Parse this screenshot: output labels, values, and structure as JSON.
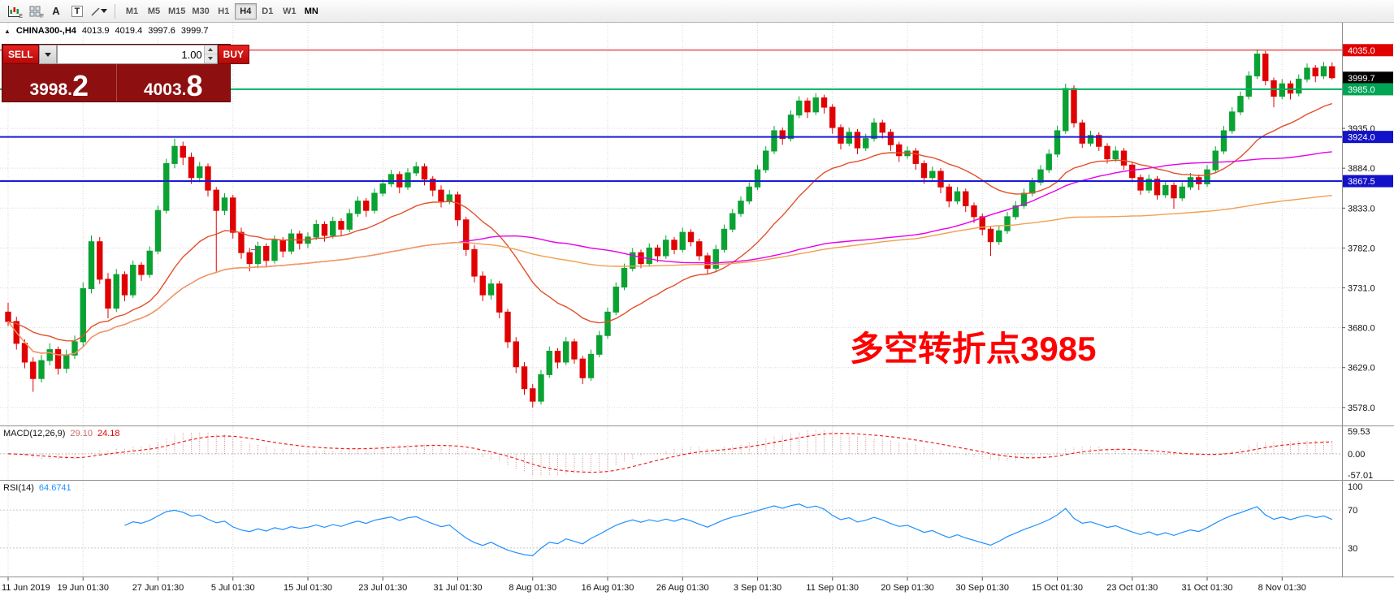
{
  "toolbar": {
    "icon_letters": [
      "E",
      "F",
      "A",
      "T"
    ],
    "timeframes": [
      {
        "label": "M1"
      },
      {
        "label": "M5"
      },
      {
        "label": "M15"
      },
      {
        "label": "M30"
      },
      {
        "label": "H1"
      },
      {
        "label": "H4",
        "selected": true
      },
      {
        "label": "D1"
      },
      {
        "label": "W1"
      },
      {
        "label": "MN",
        "emph": true
      }
    ]
  },
  "symbol_line": {
    "expander": "▲",
    "symbol": "CHINA300-,H4",
    "open": "4013.9",
    "high": "4019.4",
    "low": "3997.6",
    "close": "3999.7"
  },
  "trade_panel": {
    "sell_label": "SELL",
    "buy_label": "BUY",
    "volume": "1.00",
    "sell_main": "3998",
    "sell_pip": "2",
    "buy_main": "4003",
    "buy_pip": "8"
  },
  "annotation": {
    "text": "多空转折点3985",
    "color": "#ff0000"
  },
  "indicators": {
    "macd": {
      "label": "MACD(12,26,9)",
      "value_main": "29.10",
      "value_signal": "24.18",
      "axis": [
        "59.53",
        "0.00",
        "-57.01"
      ]
    },
    "rsi": {
      "label": "RSI(14)",
      "value": "64.6741",
      "axis": [
        "100",
        "70",
        "30"
      ],
      "levels": [
        70,
        30
      ]
    }
  },
  "price_axis": {
    "ticks": [
      "3935.0",
      "3884.0",
      "3833.0",
      "3782.0",
      "3731.0",
      "3680.0",
      "3629.0",
      "3578.0"
    ],
    "badges": [
      {
        "text": "4035.0",
        "price": 4035.0,
        "bg": "#e00000",
        "fg": "#ffffff"
      },
      {
        "text": "3999.7",
        "price": 3999.7,
        "bg": "#000000",
        "fg": "#ffffff"
      },
      {
        "text": "3985.0",
        "price": 3985.0,
        "bg": "#00a455",
        "fg": "#ffffff"
      },
      {
        "text": "3924.0",
        "price": 3924.0,
        "bg": "#1212c8",
        "fg": "#ffffff"
      },
      {
        "text": "3867.5",
        "price": 3867.5,
        "bg": "#1212c8",
        "fg": "#ffffff"
      }
    ]
  },
  "hlines": [
    {
      "price": 4035.0,
      "color": "#e00000",
      "width": 1
    },
    {
      "price": 3985.0,
      "color": "#00b25f",
      "width": 2
    },
    {
      "price": 3924.0,
      "color": "#1a1ad8",
      "width": 2
    },
    {
      "price": 3867.5,
      "color": "#1a1ad8",
      "width": 2
    }
  ],
  "time_axis": {
    "labels": [
      "11 Jun 2019",
      "19 Jun 01:30",
      "27 Jun 01:30",
      "5 Jul 01:30",
      "15 Jul 01:30",
      "23 Jul 01:30",
      "31 Jul 01:30",
      "8 Aug 01:30",
      "16 Aug 01:30",
      "26 Aug 01:30",
      "3 Sep 01:30",
      "11 Sep 01:30",
      "20 Sep 01:30",
      "30 Sep 01:30",
      "15 Oct 01:30",
      "23 Oct 01:30",
      "31 Oct 01:30",
      "8 Nov 01:30"
    ],
    "indices": [
      0,
      9,
      18,
      27,
      36,
      45,
      54,
      63,
      72,
      81,
      90,
      99,
      108,
      117,
      126,
      135,
      144,
      153
    ]
  },
  "chart_data": {
    "type": "candlestick",
    "symbol": "CHINA300-",
    "timeframe": "H4",
    "title": "CHINA300-,H4",
    "last_ohlc": {
      "open": 4013.9,
      "high": 4019.4,
      "low": 3997.6,
      "close": 3999.7
    },
    "y_view": [
      3556,
      4068
    ],
    "colors": {
      "up": "#0aa233",
      "down": "#e00202"
    },
    "moving_averages": [
      {
        "name": "fast",
        "type": "ema",
        "period": 20,
        "color": "#e2502a"
      },
      {
        "name": "medium",
        "type": "sma",
        "period": 55,
        "color": "#e800e8"
      },
      {
        "name": "slow",
        "type": "sma",
        "period": 110,
        "color": "#f0a050"
      }
    ],
    "ohlc": [
      [
        3700,
        3712,
        3682,
        3688
      ],
      [
        3688,
        3694,
        3652,
        3660
      ],
      [
        3660,
        3665,
        3628,
        3636
      ],
      [
        3636,
        3642,
        3598,
        3615
      ],
      [
        3615,
        3645,
        3610,
        3638
      ],
      [
        3638,
        3660,
        3632,
        3652
      ],
      [
        3652,
        3656,
        3620,
        3628
      ],
      [
        3628,
        3652,
        3622,
        3645
      ],
      [
        3645,
        3670,
        3640,
        3662
      ],
      [
        3662,
        3738,
        3656,
        3730
      ],
      [
        3730,
        3798,
        3724,
        3790
      ],
      [
        3790,
        3796,
        3736,
        3742
      ],
      [
        3742,
        3750,
        3692,
        3705
      ],
      [
        3705,
        3755,
        3700,
        3748
      ],
      [
        3748,
        3752,
        3714,
        3722
      ],
      [
        3722,
        3766,
        3718,
        3760
      ],
      [
        3760,
        3764,
        3740,
        3748
      ],
      [
        3748,
        3784,
        3744,
        3778
      ],
      [
        3778,
        3836,
        3774,
        3830
      ],
      [
        3830,
        3896,
        3826,
        3890
      ],
      [
        3890,
        3922,
        3884,
        3912
      ],
      [
        3912,
        3918,
        3888,
        3898
      ],
      [
        3898,
        3904,
        3864,
        3872
      ],
      [
        3872,
        3892,
        3866,
        3886
      ],
      [
        3886,
        3890,
        3848,
        3856
      ],
      [
        3856,
        3860,
        3752,
        3830
      ],
      [
        3830,
        3852,
        3824,
        3846
      ],
      [
        3846,
        3850,
        3794,
        3802
      ],
      [
        3802,
        3808,
        3768,
        3776
      ],
      [
        3776,
        3782,
        3752,
        3762
      ],
      [
        3762,
        3790,
        3756,
        3784
      ],
      [
        3784,
        3788,
        3758,
        3766
      ],
      [
        3766,
        3798,
        3762,
        3792
      ],
      [
        3792,
        3796,
        3770,
        3778
      ],
      [
        3778,
        3806,
        3774,
        3800
      ],
      [
        3800,
        3804,
        3780,
        3788
      ],
      [
        3788,
        3802,
        3782,
        3796
      ],
      [
        3796,
        3818,
        3792,
        3812
      ],
      [
        3812,
        3816,
        3790,
        3798
      ],
      [
        3798,
        3822,
        3794,
        3816
      ],
      [
        3816,
        3820,
        3798,
        3806
      ],
      [
        3806,
        3832,
        3802,
        3826
      ],
      [
        3826,
        3848,
        3822,
        3842
      ],
      [
        3842,
        3846,
        3822,
        3830
      ],
      [
        3830,
        3858,
        3826,
        3852
      ],
      [
        3852,
        3870,
        3848,
        3864
      ],
      [
        3864,
        3882,
        3860,
        3876
      ],
      [
        3876,
        3880,
        3852,
        3860
      ],
      [
        3860,
        3884,
        3856,
        3878
      ],
      [
        3878,
        3892,
        3874,
        3886
      ],
      [
        3886,
        3890,
        3862,
        3870
      ],
      [
        3870,
        3874,
        3848,
        3856
      ],
      [
        3856,
        3862,
        3834,
        3842
      ],
      [
        3842,
        3856,
        3838,
        3850
      ],
      [
        3850,
        3854,
        3810,
        3818
      ],
      [
        3818,
        3822,
        3772,
        3780
      ],
      [
        3780,
        3786,
        3738,
        3746
      ],
      [
        3746,
        3752,
        3714,
        3722
      ],
      [
        3722,
        3742,
        3716,
        3736
      ],
      [
        3736,
        3740,
        3692,
        3700
      ],
      [
        3700,
        3704,
        3654,
        3662
      ],
      [
        3662,
        3668,
        3622,
        3630
      ],
      [
        3630,
        3636,
        3594,
        3602
      ],
      [
        3602,
        3608,
        3578,
        3586
      ],
      [
        3586,
        3626,
        3582,
        3620
      ],
      [
        3620,
        3656,
        3616,
        3650
      ],
      [
        3650,
        3654,
        3628,
        3636
      ],
      [
        3636,
        3668,
        3632,
        3662
      ],
      [
        3662,
        3666,
        3634,
        3640
      ],
      [
        3640,
        3644,
        3608,
        3616
      ],
      [
        3616,
        3652,
        3612,
        3646
      ],
      [
        3646,
        3676,
        3642,
        3670
      ],
      [
        3670,
        3706,
        3666,
        3700
      ],
      [
        3700,
        3738,
        3696,
        3732
      ],
      [
        3732,
        3762,
        3728,
        3756
      ],
      [
        3756,
        3782,
        3752,
        3776
      ],
      [
        3776,
        3780,
        3756,
        3762
      ],
      [
        3762,
        3788,
        3758,
        3782
      ],
      [
        3782,
        3786,
        3764,
        3772
      ],
      [
        3772,
        3798,
        3768,
        3792
      ],
      [
        3792,
        3796,
        3774,
        3780
      ],
      [
        3780,
        3808,
        3776,
        3802
      ],
      [
        3802,
        3806,
        3784,
        3790
      ],
      [
        3790,
        3794,
        3766,
        3772
      ],
      [
        3772,
        3776,
        3748,
        3756
      ],
      [
        3756,
        3786,
        3752,
        3780
      ],
      [
        3780,
        3812,
        3776,
        3806
      ],
      [
        3806,
        3832,
        3802,
        3826
      ],
      [
        3826,
        3848,
        3822,
        3842
      ],
      [
        3842,
        3866,
        3838,
        3860
      ],
      [
        3860,
        3888,
        3856,
        3882
      ],
      [
        3882,
        3912,
        3878,
        3906
      ],
      [
        3906,
        3938,
        3902,
        3932
      ],
      [
        3932,
        3936,
        3914,
        3922
      ],
      [
        3922,
        3958,
        3918,
        3952
      ],
      [
        3952,
        3976,
        3948,
        3970
      ],
      [
        3970,
        3974,
        3948,
        3956
      ],
      [
        3956,
        3980,
        3952,
        3974
      ],
      [
        3974,
        3978,
        3954,
        3962
      ],
      [
        3962,
        3966,
        3928,
        3936
      ],
      [
        3936,
        3940,
        3908,
        3916
      ],
      [
        3916,
        3936,
        3912,
        3930
      ],
      [
        3930,
        3934,
        3902,
        3910
      ],
      [
        3910,
        3928,
        3906,
        3922
      ],
      [
        3922,
        3948,
        3918,
        3942
      ],
      [
        3942,
        3946,
        3922,
        3930
      ],
      [
        3930,
        3934,
        3906,
        3914
      ],
      [
        3914,
        3918,
        3892,
        3900
      ],
      [
        3900,
        3912,
        3896,
        3906
      ],
      [
        3906,
        3910,
        3882,
        3890
      ],
      [
        3890,
        3894,
        3864,
        3872
      ],
      [
        3872,
        3886,
        3868,
        3880
      ],
      [
        3880,
        3884,
        3852,
        3860
      ],
      [
        3860,
        3864,
        3834,
        3842
      ],
      [
        3842,
        3860,
        3838,
        3854
      ],
      [
        3854,
        3858,
        3828,
        3836
      ],
      [
        3836,
        3840,
        3814,
        3822
      ],
      [
        3822,
        3826,
        3798,
        3806
      ],
      [
        3806,
        3810,
        3772,
        3790
      ],
      [
        3790,
        3810,
        3786,
        3804
      ],
      [
        3804,
        3828,
        3800,
        3822
      ],
      [
        3822,
        3842,
        3818,
        3836
      ],
      [
        3836,
        3858,
        3832,
        3852
      ],
      [
        3852,
        3872,
        3848,
        3866
      ],
      [
        3866,
        3888,
        3862,
        3882
      ],
      [
        3882,
        3908,
        3878,
        3902
      ],
      [
        3902,
        3938,
        3898,
        3932
      ],
      [
        3932,
        3992,
        3928,
        3986
      ],
      [
        3986,
        3990,
        3936,
        3942
      ],
      [
        3942,
        3946,
        3910,
        3916
      ],
      [
        3916,
        3932,
        3912,
        3926
      ],
      [
        3926,
        3930,
        3906,
        3912
      ],
      [
        3912,
        3916,
        3890,
        3896
      ],
      [
        3896,
        3912,
        3892,
        3906
      ],
      [
        3906,
        3910,
        3882,
        3888
      ],
      [
        3888,
        3892,
        3866,
        3872
      ],
      [
        3872,
        3876,
        3850,
        3856
      ],
      [
        3856,
        3876,
        3852,
        3870
      ],
      [
        3870,
        3874,
        3844,
        3850
      ],
      [
        3850,
        3868,
        3846,
        3862
      ],
      [
        3862,
        3866,
        3832,
        3846
      ],
      [
        3846,
        3866,
        3842,
        3860
      ],
      [
        3860,
        3878,
        3856,
        3872
      ],
      [
        3872,
        3876,
        3856,
        3864
      ],
      [
        3864,
        3888,
        3860,
        3882
      ],
      [
        3882,
        3912,
        3878,
        3906
      ],
      [
        3906,
        3938,
        3902,
        3932
      ],
      [
        3932,
        3962,
        3928,
        3956
      ],
      [
        3956,
        3982,
        3952,
        3976
      ],
      [
        3976,
        4008,
        3972,
        4002
      ],
      [
        4002,
        4036,
        3998,
        4030
      ],
      [
        4030,
        4034,
        3990,
        3996
      ],
      [
        3996,
        4000,
        3962,
        3976
      ],
      [
        3976,
        3998,
        3972,
        3992
      ],
      [
        3992,
        3996,
        3972,
        3980
      ],
      [
        3980,
        4004,
        3976,
        3998
      ],
      [
        3998,
        4018,
        3994,
        4012
      ],
      [
        4012,
        4016,
        3994,
        4002
      ],
      [
        4002,
        4020,
        3998,
        4014
      ],
      [
        4013.9,
        4019.4,
        3997.6,
        3999.7
      ]
    ]
  }
}
